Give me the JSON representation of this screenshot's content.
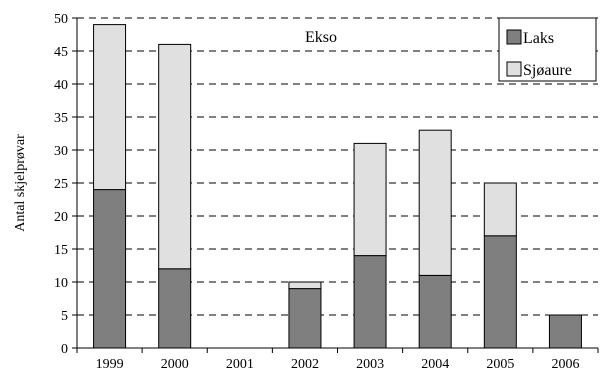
{
  "chart_data": {
    "type": "bar",
    "stacked": true,
    "title": "Ekso",
    "xlabel": "",
    "ylabel": "Antal skjelprøvar",
    "categories": [
      "1999",
      "2000",
      "2001",
      "2002",
      "2003",
      "2004",
      "2005",
      "2006"
    ],
    "ylim": [
      0,
      50
    ],
    "yticks": [
      0,
      5,
      10,
      15,
      20,
      25,
      30,
      35,
      40,
      45,
      50
    ],
    "grid": "dashed-horizontal",
    "legend_position": "top-right",
    "series": [
      {
        "name": "Laks",
        "color": "#7f7f7f",
        "values": [
          24,
          12,
          0,
          9,
          14,
          11,
          17,
          5
        ]
      },
      {
        "name": "Sjøaure",
        "color": "#e0e0e0",
        "values": [
          25,
          34,
          0,
          1,
          17,
          22,
          8,
          0
        ]
      }
    ]
  }
}
